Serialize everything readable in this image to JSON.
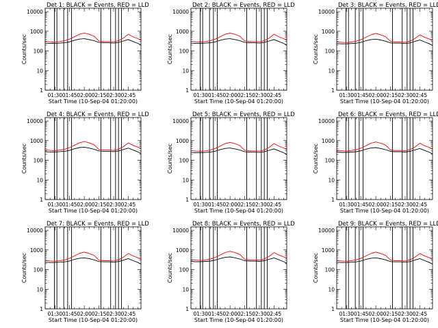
{
  "chart_data": {
    "type": "line",
    "layout": "3x3 grid of panels",
    "shared": {
      "xlabel": "Start Time (10-Sep-04 01:20:00)",
      "ylabel": "Counts/sec",
      "x_ticks": [
        "01:30",
        "01:45",
        "02:00",
        "02:15",
        "02:30",
        "02:45"
      ],
      "x_tick_minutes": [
        10,
        25,
        40,
        55,
        70,
        85
      ],
      "xlim_minutes": [
        0,
        98
      ],
      "y_scale": "log",
      "ylim": [
        1,
        15000
      ],
      "y_ticks": [
        1,
        10,
        100,
        1000,
        10000
      ],
      "y_tick_labels": [
        "1",
        "10",
        "100",
        "1000",
        "10000"
      ],
      "grid": false,
      "colors": {
        "events": "#000000",
        "lld": "#ff0000"
      },
      "x_minutes": [
        0,
        5,
        10,
        15,
        20,
        25,
        30,
        35,
        40,
        45,
        50,
        55,
        60,
        65,
        70,
        75,
        80,
        85,
        90,
        95,
        98
      ],
      "series_template": [
        {
          "name": "BLACK = Events",
          "color": "#000000",
          "values": [
            250,
            240,
            240,
            250,
            260,
            290,
            350,
            400,
            420,
            380,
            330,
            270,
            260,
            260,
            250,
            270,
            320,
            380,
            300,
            240,
            200
          ]
        },
        {
          "name": "RED = LLD",
          "color": "#ff0000",
          "values": [
            310,
            290,
            280,
            300,
            330,
            400,
            530,
            700,
            820,
            700,
            560,
            320,
            300,
            300,
            290,
            330,
            450,
            700,
            520,
            420,
            350
          ]
        }
      ],
      "vertical_markers_minutes": [
        9.5,
        12,
        19,
        23,
        27,
        57,
        67,
        72,
        75,
        78
      ]
    },
    "panels": [
      {
        "title": "Det 1: BLACK = Events, RED = LLD",
        "scale": 1.0
      },
      {
        "title": "Det 2: BLACK = Events, RED = LLD",
        "scale": 1.0
      },
      {
        "title": "Det 3: BLACK = Events, RED = LLD",
        "scale": 0.95
      },
      {
        "title": "Det 4: BLACK = Events, RED = LLD",
        "scale": 1.1
      },
      {
        "title": "Det 5: BLACK = Events, RED = LLD",
        "scale": 1.0
      },
      {
        "title": "Det 6: BLACK = Events, RED = LLD",
        "scale": 1.05
      },
      {
        "title": "Det 7: BLACK = Events, RED = LLD",
        "scale": 0.95
      },
      {
        "title": "Det 8: BLACK = Events, RED = LLD",
        "scale": 1.05
      },
      {
        "title": "Det 9: BLACK = Events, RED = LLD",
        "scale": 0.95
      }
    ]
  }
}
